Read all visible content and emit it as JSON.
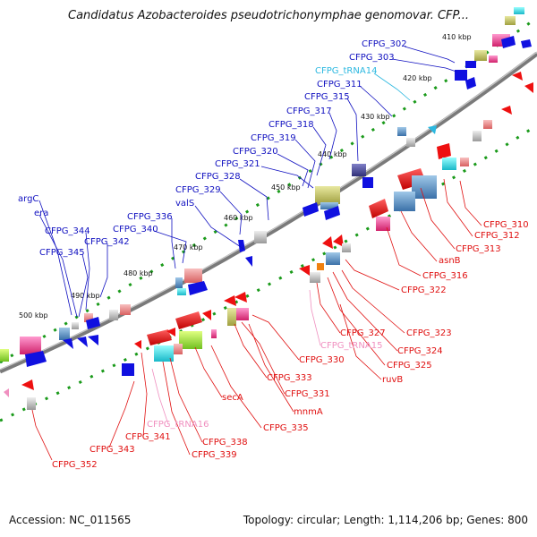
{
  "title": "Candidatus Azobacteroides pseudotrichonymphae genomovar. CFP...",
  "footer": {
    "accession": "Accession: NC_011565",
    "summary": "Topology: circular; Length: 1,114,206 bp; Genes: 800"
  },
  "colors": {
    "forward_label": "#1010c0",
    "reverse_label": "#e01010",
    "trna_forward": "#2cb8e0",
    "trna_reverse": "#f090c0",
    "backbone": "#888888",
    "tick": "#119911"
  },
  "kbp_ticks": [
    "410 kbp",
    "420 kbp",
    "430 kbp",
    "440 kbp",
    "450 kbp",
    "460 kbp",
    "470 kbp",
    "480 kbp",
    "490 kbp",
    "500 kbp"
  ],
  "forward_labels": [
    "CFPG_302",
    "CFPG_303",
    "CFPG_tRNA14",
    "CFPG_311",
    "CFPG_315",
    "CFPG_317",
    "CFPG_318",
    "CFPG_319",
    "CFPG_320",
    "CFPG_321",
    "CFPG_328",
    "CFPG_329",
    "valS",
    "CFPG_336",
    "CFPG_340",
    "argC",
    "era",
    "CFPG_344",
    "CFPG_342",
    "CFPG_345"
  ],
  "reverse_labels": [
    "CFPG_310",
    "CFPG_312",
    "CFPG_313",
    "asnB",
    "CFPG_316",
    "CFPG_322",
    "CFPG_323",
    "CFPG_324",
    "CFPG_325",
    "ruvB",
    "CFPG_327",
    "CFPG_tRNA15",
    "CFPG_330",
    "CFPG_333",
    "CFPG_331",
    "mnmA",
    "secA",
    "CFPG_335",
    "CFPG_338",
    "CFPG_339",
    "CFPG_tRNA16",
    "CFPG_341",
    "CFPG_343",
    "CFPG_352"
  ]
}
